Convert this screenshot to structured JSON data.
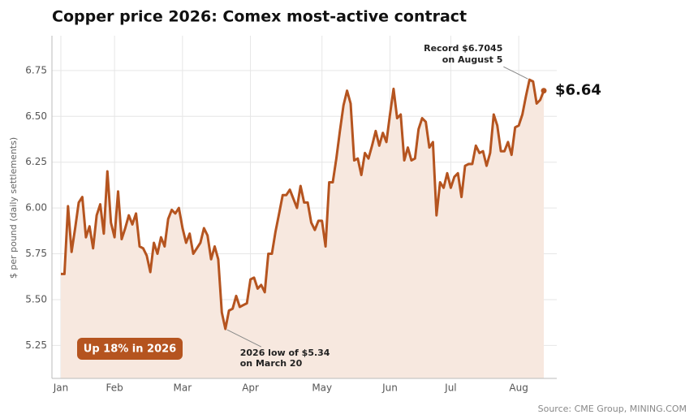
{
  "chart_data": {
    "type": "area",
    "title": "Copper price 2026: Comex most-active contract",
    "y_label": "$ per pound (daily settlements)",
    "source": "Source: CME Group, MINING.COM",
    "badge": "Up 18% in 2026",
    "end_label": "$6.64",
    "annotations": [
      {
        "lines": [
          "Record $6.7045",
          "on August 5"
        ]
      },
      {
        "lines": [
          "2026 low of $5.34",
          "on March 20"
        ]
      }
    ],
    "color": "#b5541f",
    "fill": "#f7e8df",
    "grid": true,
    "ylim": [
      5.07,
      6.94
    ],
    "yticks": [
      {
        "value": 5.25,
        "label": "5.25"
      },
      {
        "value": 5.5,
        "label": "5.50"
      },
      {
        "value": 5.75,
        "label": "5.75"
      },
      {
        "value": 6,
        "label": "6.00"
      },
      {
        "value": 6.25,
        "label": "6.25"
      },
      {
        "value": 6.5,
        "label": "6.50"
      },
      {
        "value": 6.75,
        "label": "6.75"
      }
    ],
    "categories": [
      "Jan",
      null,
      null,
      null,
      null,
      null,
      null,
      null,
      null,
      null,
      null,
      null,
      null,
      null,
      null,
      "Feb",
      null,
      null,
      null,
      null,
      null,
      null,
      null,
      null,
      null,
      null,
      null,
      null,
      null,
      null,
      null,
      null,
      null,
      null,
      "Mar",
      null,
      null,
      null,
      null,
      null,
      null,
      null,
      null,
      null,
      null,
      null,
      null,
      null,
      null,
      null,
      null,
      null,
      null,
      "Apr",
      null,
      null,
      null,
      null,
      null,
      null,
      null,
      null,
      null,
      null,
      null,
      null,
      null,
      null,
      null,
      null,
      null,
      null,
      null,
      "May",
      null,
      null,
      null,
      null,
      null,
      null,
      null,
      null,
      null,
      null,
      null,
      null,
      null,
      null,
      null,
      null,
      null,
      null,
      "Jun",
      null,
      null,
      null,
      null,
      null,
      null,
      null,
      null,
      null,
      null,
      null,
      null,
      null,
      null,
      null,
      null,
      "Jul",
      null,
      null,
      null,
      null,
      null,
      null,
      null,
      null,
      null,
      null,
      null,
      null,
      null,
      null,
      null,
      null,
      null,
      null,
      "Aug",
      null,
      null,
      null,
      null,
      null,
      null,
      null
    ],
    "values": [
      5.64,
      5.64,
      6.01,
      5.76,
      5.89,
      6.03,
      6.06,
      5.84,
      5.9,
      5.78,
      5.96,
      6.02,
      5.86,
      6.2,
      5.92,
      5.84,
      6.09,
      5.83,
      5.89,
      5.96,
      5.91,
      5.97,
      5.79,
      5.78,
      5.74,
      5.65,
      5.81,
      5.75,
      5.84,
      5.79,
      5.94,
      5.99,
      5.97,
      6.0,
      5.89,
      5.81,
      5.86,
      5.75,
      5.78,
      5.81,
      5.89,
      5.85,
      5.72,
      5.79,
      5.72,
      5.43,
      5.34,
      5.44,
      5.45,
      5.52,
      5.46,
      5.47,
      5.48,
      5.61,
      5.62,
      5.56,
      5.58,
      5.54,
      5.75,
      5.75,
      5.87,
      5.97,
      6.07,
      6.07,
      6.1,
      6.05,
      6.0,
      6.12,
      6.03,
      6.03,
      5.92,
      5.88,
      5.93,
      5.93,
      5.79,
      6.14,
      6.14,
      6.27,
      6.42,
      6.56,
      6.64,
      6.57,
      6.26,
      6.27,
      6.18,
      6.3,
      6.27,
      6.34,
      6.42,
      6.34,
      6.41,
      6.36,
      6.51,
      6.65,
      6.49,
      6.51,
      6.26,
      6.33,
      6.26,
      6.27,
      6.43,
      6.49,
      6.47,
      6.33,
      6.36,
      5.96,
      6.14,
      6.11,
      6.19,
      6.11,
      6.17,
      6.19,
      6.06,
      6.23,
      6.24,
      6.24,
      6.34,
      6.3,
      6.31,
      6.23,
      6.3,
      6.51,
      6.45,
      6.31,
      6.31,
      6.36,
      6.29,
      6.44,
      6.45,
      6.51,
      6.61,
      6.7,
      6.69,
      6.57,
      6.59,
      6.64
    ]
  }
}
